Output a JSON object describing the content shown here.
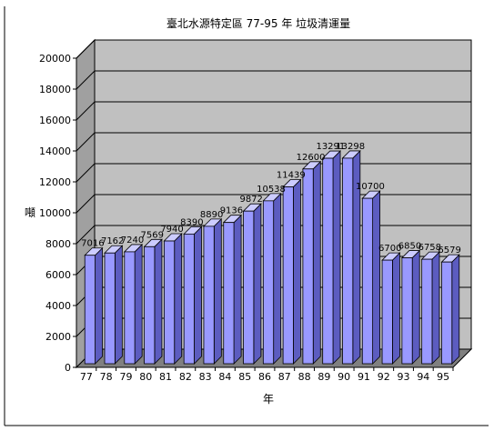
{
  "chart_data": {
    "type": "bar",
    "title": "臺北水源特定區 77-95 年 垃圾清運量",
    "xlabel": "年",
    "ylabel": "噸",
    "categories": [
      "77",
      "78",
      "79",
      "80",
      "81",
      "82",
      "83",
      "84",
      "85",
      "86",
      "87",
      "88",
      "89",
      "90",
      "91",
      "92",
      "93",
      "94",
      "95"
    ],
    "values": [
      7016,
      7162,
      7240,
      7569,
      7940,
      8390,
      8890,
      9136,
      9872,
      10538,
      11439,
      12600,
      13291,
      13298,
      10700,
      6700,
      6850,
      6758,
      6579
    ],
    "data_labels": [
      "7016",
      "7162",
      "7240",
      "7569",
      "7940",
      "8390",
      "8890",
      "9136",
      "9872",
      "10538",
      "11439",
      "12600",
      "13291",
      "13298",
      "10700",
      "6700",
      "6850",
      "6758",
      "6579"
    ],
    "yticks": [
      "0",
      "2000",
      "4000",
      "6000",
      "8000",
      "10000",
      "12000",
      "14000",
      "16000",
      "18000",
      "20000"
    ],
    "ylim": [
      0,
      20000
    ],
    "grid": true,
    "legend": "none",
    "colors": {
      "bar_front": "#9999ff",
      "bar_top": "#ccccff",
      "bar_side": "#5c5cc0",
      "back_wall": "#c0c0c0",
      "side_wall": "#a0a0a0",
      "floor": "#808080"
    }
  }
}
